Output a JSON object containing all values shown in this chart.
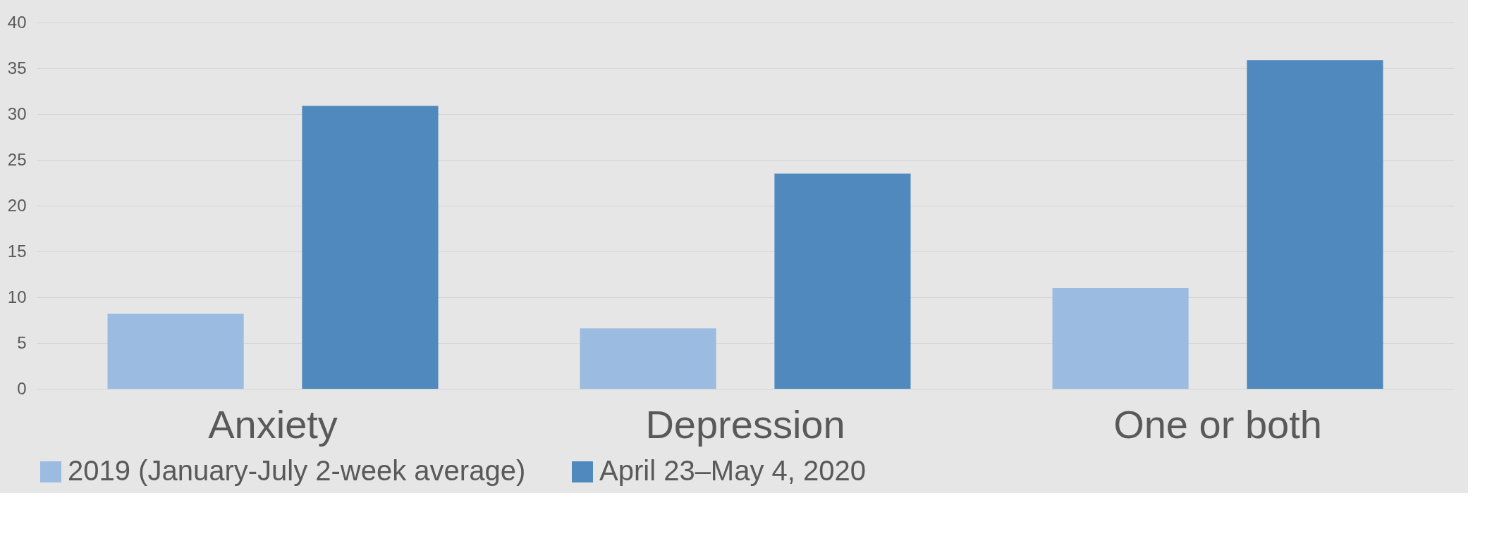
{
  "chart_data": {
    "type": "bar",
    "categories": [
      "Anxiety",
      "Depression",
      "One or both"
    ],
    "series": [
      {
        "name": "2019 (January-July 2-week average)",
        "color": "#9bbbe0",
        "values": [
          8.2,
          6.6,
          11.0
        ]
      },
      {
        "name": "April 23–May 4, 2020",
        "color": "#4f89bd",
        "values": [
          30.9,
          23.5,
          35.9
        ]
      }
    ],
    "ylim": [
      0,
      40
    ],
    "yticks": [
      0,
      5,
      10,
      15,
      20,
      25,
      30,
      35,
      40
    ],
    "grid": "y",
    "legend": "bottom"
  }
}
